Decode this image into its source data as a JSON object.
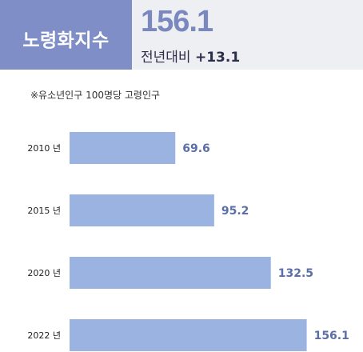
{
  "header": {
    "title": "노령화지수",
    "value": "156.1",
    "yoy_label": "전년대비",
    "yoy_change": "+13.1"
  },
  "note": "※유소년인구 100명당 고령인구",
  "colors": {
    "title_bg": "#7f8ec6",
    "bar": "#9ab3e1",
    "value_text": "#5a6fa8"
  },
  "chart_data": {
    "type": "bar",
    "orientation": "horizontal",
    "categories": [
      "2010 년",
      "2015 년",
      "2020 년",
      "2022 년"
    ],
    "values": [
      69.6,
      95.2,
      132.5,
      156.1
    ],
    "value_labels": [
      "69.6",
      "95.2",
      "132.5",
      "156.1"
    ],
    "title": "",
    "xlabel": "",
    "ylabel": "",
    "xlim": [
      0,
      160
    ],
    "grid": false
  }
}
